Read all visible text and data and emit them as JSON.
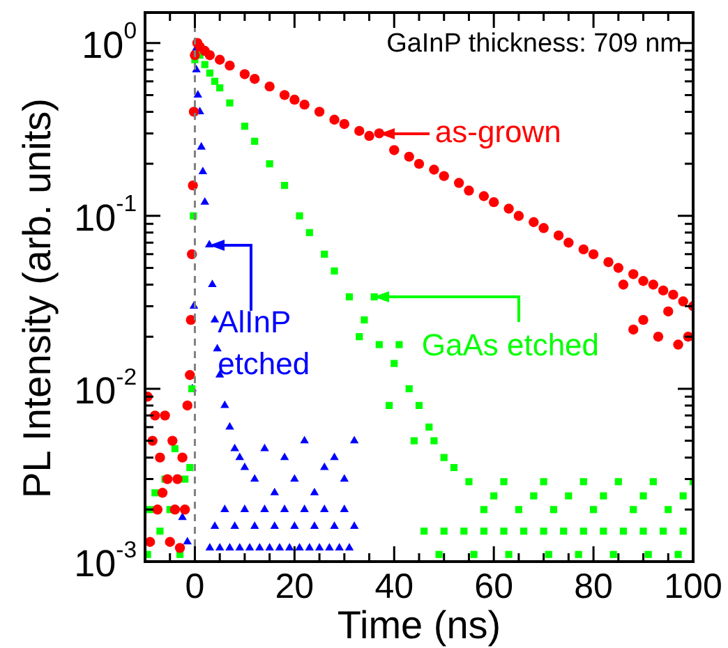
{
  "chart_data": {
    "type": "scatter",
    "xlabel": "Time (ns)",
    "ylabel": "PL Intensity (arb. units)",
    "log": "y",
    "grid": false,
    "legend": false,
    "xlim": [
      -10,
      100
    ],
    "xticks": [
      {
        "value": -5,
        "label": null
      },
      0,
      {
        "value": 5,
        "label": null
      },
      {
        "value": 10,
        "label": null
      },
      {
        "value": 15,
        "label": null
      },
      20,
      {
        "value": 25,
        "label": null
      },
      {
        "value": 30,
        "label": null
      },
      {
        "value": 35,
        "label": null
      },
      40,
      {
        "value": 45,
        "label": null
      },
      {
        "value": 50,
        "label": null
      },
      {
        "value": 55,
        "label": null
      },
      60,
      {
        "value": 65,
        "label": null
      },
      {
        "value": 70,
        "label": null
      },
      {
        "value": 75,
        "label": null
      },
      80,
      {
        "value": 85,
        "label": null
      },
      {
        "value": 90,
        "label": null
      },
      {
        "value": 95,
        "label": null
      },
      100
    ],
    "ylim": [
      0.001,
      1.5
    ],
    "yticks": [
      {
        "value": 0.001,
        "label": "10$^{-3}$"
      },
      {
        "value": 0.002,
        "label": null
      },
      {
        "value": 0.003,
        "label": null
      },
      {
        "value": 0.004,
        "label": null
      },
      {
        "value": 0.005,
        "label": null
      },
      {
        "value": 0.006,
        "label": null
      },
      {
        "value": 0.007,
        "label": null
      },
      {
        "value": 0.008,
        "label": null
      },
      {
        "value": 0.009,
        "label": null
      },
      {
        "value": 0.01,
        "label": "10$^{-2}$"
      },
      {
        "value": 0.02,
        "label": null
      },
      {
        "value": 0.03,
        "label": null
      },
      {
        "value": 0.04,
        "label": null
      },
      {
        "value": 0.05,
        "label": null
      },
      {
        "value": 0.06,
        "label": null
      },
      {
        "value": 0.07,
        "label": null
      },
      {
        "value": 0.08,
        "label": null
      },
      {
        "value": 0.09,
        "label": null
      },
      {
        "value": 0.1,
        "label": "10$^{-1}$"
      },
      {
        "value": 0.2,
        "label": null
      },
      {
        "value": 0.3,
        "label": null
      },
      {
        "value": 0.4,
        "label": null
      },
      {
        "value": 0.5,
        "label": null
      },
      {
        "value": 0.6,
        "label": null
      },
      {
        "value": 0.7,
        "label": null
      },
      {
        "value": 0.8,
        "label": null
      },
      {
        "value": 0.9,
        "label": null
      },
      {
        "value": 1,
        "label": "10$^{0}$"
      }
    ],
    "ref_lines": [
      {
        "axis": "x",
        "value": 0,
        "color": "#808080",
        "line_style": "dashed"
      }
    ],
    "annotations": [
      {
        "text": "as-grown",
        "x": 37,
        "y": 0.3
      },
      {
        "text": "GaAs etched",
        "x": 36,
        "y": 0.034
      },
      {
        "text": "AlInP etched",
        "x": 2.9,
        "y": 0.068
      },
      "GaInP thickness: 709 nm"
    ],
    "series": [
      {
        "color": "#ff0000",
        "marker": "circle",
        "x": [
          -9.5,
          -9,
          -8.5,
          -8,
          -7.5,
          -7,
          -6.5,
          -6,
          -5.5,
          -5,
          -4.5,
          -4,
          -3.5,
          -3,
          -2.5,
          -2,
          -1.5,
          -1,
          -0.8,
          -0.6,
          -0.4,
          -0.2,
          0,
          0.5,
          1,
          2,
          3,
          5,
          7,
          10,
          12,
          15,
          18,
          20,
          22,
          25,
          28,
          30,
          33,
          35,
          37,
          40,
          43,
          45,
          48,
          50,
          53,
          55,
          58,
          60,
          63,
          65,
          68,
          70,
          73,
          75,
          78,
          80,
          83,
          85,
          88,
          90,
          92,
          94,
          96,
          98,
          100,
          90,
          93,
          95,
          97,
          99,
          86,
          88
        ],
        "values": [
          0.009,
          0.0013,
          0.005,
          0.007,
          0.002,
          0.004,
          0.0025,
          0.007,
          0.003,
          0.0013,
          0.005,
          0.002,
          0.003,
          0.0012,
          0.004,
          0.002,
          0.008,
          0.012,
          0.025,
          0.06,
          0.15,
          0.4,
          0.85,
          1.0,
          0.95,
          0.9,
          0.85,
          0.8,
          0.74,
          0.66,
          0.62,
          0.56,
          0.5,
          0.47,
          0.44,
          0.4,
          0.36,
          0.34,
          0.31,
          0.29,
          0.3,
          0.24,
          0.22,
          0.2,
          0.185,
          0.17,
          0.155,
          0.14,
          0.13,
          0.12,
          0.11,
          0.1,
          0.092,
          0.085,
          0.077,
          0.07,
          0.064,
          0.06,
          0.054,
          0.05,
          0.046,
          0.042,
          0.04,
          0.037,
          0.035,
          0.032,
          0.03,
          0.025,
          0.02,
          0.028,
          0.018,
          0.02,
          0.04,
          0.022
        ]
      },
      {
        "color": "#00ff00",
        "marker": "square",
        "x": [
          -9.5,
          -9,
          -8,
          -7,
          -6,
          -5,
          -4,
          -3,
          -2,
          -1,
          -0.6,
          -0.3,
          0,
          1,
          2,
          3,
          4,
          5,
          7,
          10,
          12,
          15,
          18,
          21,
          23,
          26,
          28,
          31,
          34,
          36,
          37,
          40,
          43,
          45,
          47,
          48,
          50,
          52,
          55,
          58,
          60,
          62,
          65,
          68,
          70,
          72,
          75,
          78,
          80,
          82,
          85,
          88,
          90,
          92,
          95,
          98,
          100,
          46,
          50,
          54,
          58,
          62,
          66,
          70,
          74,
          78,
          82,
          86,
          90,
          94,
          98,
          49,
          56,
          63,
          71,
          77,
          84,
          91,
          97,
          33,
          39,
          44,
          41
        ],
        "values": [
          0.0011,
          0.002,
          0.0025,
          0.0015,
          0.003,
          0.002,
          0.0045,
          0.0011,
          0.003,
          0.0035,
          0.01,
          0.1,
          0.8,
          0.85,
          0.75,
          0.67,
          0.6,
          0.55,
          0.45,
          0.33,
          0.27,
          0.2,
          0.15,
          0.1,
          0.08,
          0.06,
          0.048,
          0.034,
          0.025,
          0.034,
          0.018,
          0.014,
          0.01,
          0.008,
          0.006,
          0.005,
          0.004,
          0.0035,
          0.0029,
          0.002,
          0.0024,
          0.0029,
          0.002,
          0.0024,
          0.0029,
          0.002,
          0.0024,
          0.0029,
          0.002,
          0.0024,
          0.0029,
          0.002,
          0.0024,
          0.0029,
          0.002,
          0.0024,
          0.0029,
          0.0015,
          0.0015,
          0.0015,
          0.0015,
          0.0015,
          0.0015,
          0.0015,
          0.0015,
          0.0015,
          0.0015,
          0.0015,
          0.0015,
          0.0015,
          0.0015,
          0.0011,
          0.0011,
          0.0011,
          0.0011,
          0.0011,
          0.0011,
          0.0011,
          0.0011,
          0.02,
          0.008,
          0.005,
          0.018
        ]
      },
      {
        "color": "#0000ff",
        "marker": "triangle",
        "x": [
          -2.5,
          -1.5,
          -0.5,
          -0.2,
          0,
          0.3,
          0.6,
          1,
          1.3,
          1.6,
          2,
          2.9,
          3.5,
          4,
          4.5,
          5,
          6,
          7,
          8,
          9,
          10,
          12,
          14,
          16,
          18,
          20,
          22,
          24,
          26,
          28,
          30,
          32,
          3,
          5,
          7,
          9,
          11,
          13,
          15,
          17,
          19,
          21,
          23,
          25,
          27,
          29,
          31,
          4,
          8,
          12,
          16,
          20,
          24,
          28,
          32,
          6,
          10,
          14,
          18,
          22,
          26,
          30
        ],
        "values": [
          0.0018,
          0.0013,
          0.01,
          0.03,
          0.9,
          0.7,
          0.5,
          0.4,
          0.25,
          0.18,
          0.12,
          0.068,
          0.04,
          0.025,
          0.017,
          0.012,
          0.008,
          0.006,
          0.0045,
          0.004,
          0.0035,
          0.003,
          0.0045,
          0.0025,
          0.004,
          0.003,
          0.005,
          0.0025,
          0.0035,
          0.004,
          0.003,
          0.005,
          0.0012,
          0.0012,
          0.0012,
          0.0012,
          0.0012,
          0.0012,
          0.0012,
          0.0012,
          0.0012,
          0.0012,
          0.0012,
          0.0012,
          0.0012,
          0.0012,
          0.0012,
          0.0016,
          0.0016,
          0.0016,
          0.0016,
          0.0016,
          0.0016,
          0.0016,
          0.0016,
          0.002,
          0.002,
          0.002,
          0.002,
          0.002,
          0.002,
          0.002
        ]
      }
    ]
  }
}
